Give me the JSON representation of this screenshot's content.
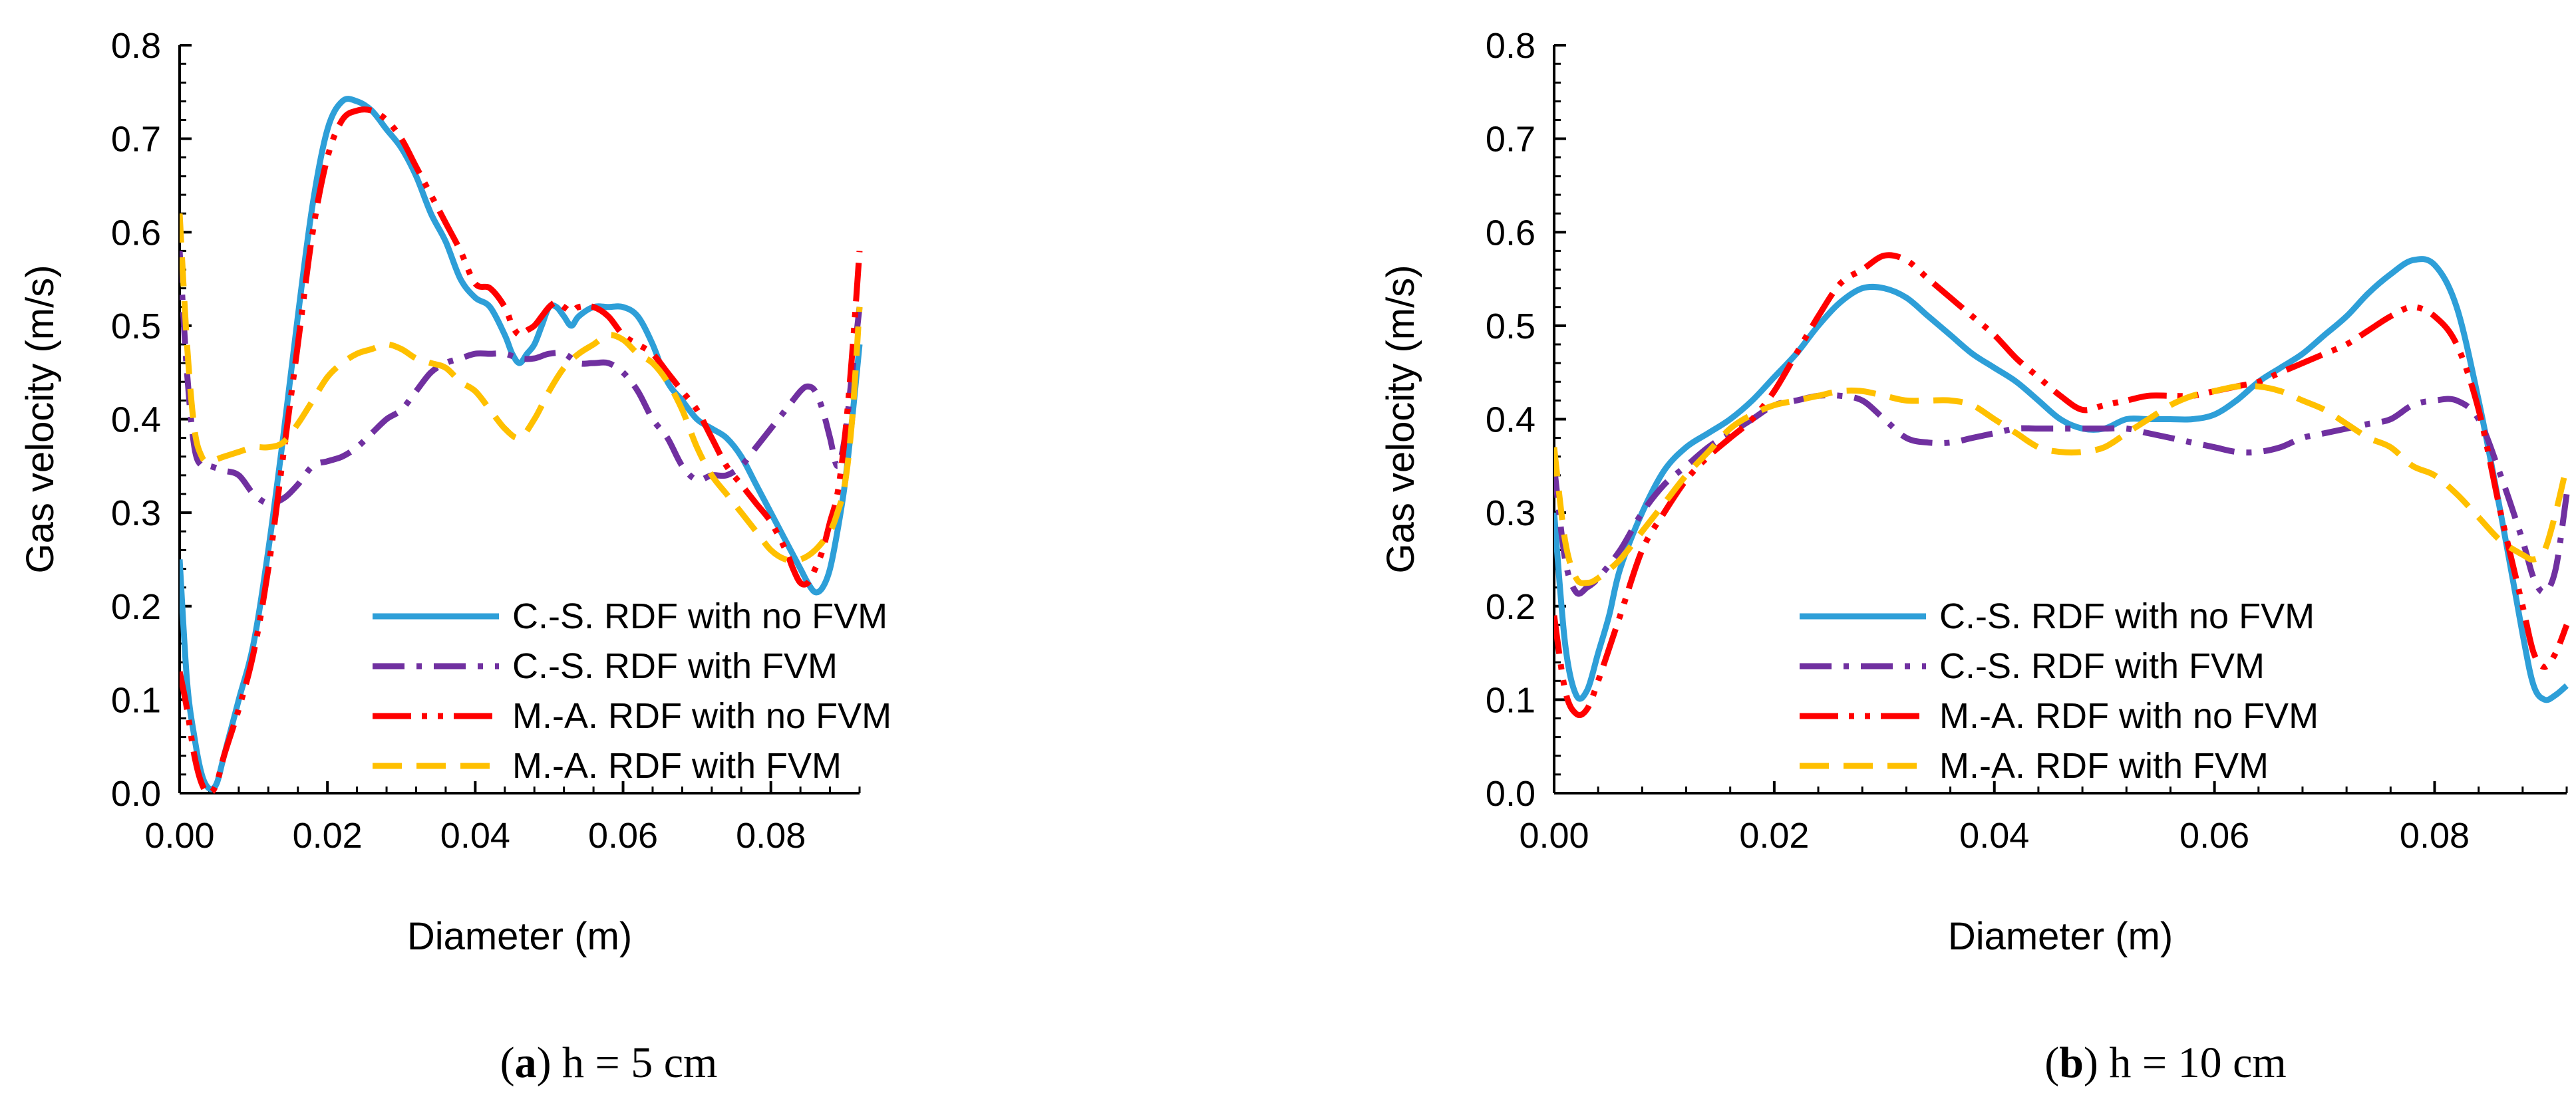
{
  "chart_data": [
    {
      "type": "line",
      "caption": {
        "open": "(",
        "letter": "a",
        "rest": ") h = 5 cm"
      },
      "xlabel": "Diameter (m)",
      "ylabel": "Gas velocity (m/s)",
      "xlim": [
        0,
        0.092
      ],
      "ylim": [
        0,
        0.8
      ],
      "xticks": [
        0,
        0.02,
        0.04,
        0.06,
        0.08
      ],
      "xtick_labels": [
        "0.00",
        "0.02",
        "0.04",
        "0.06",
        "0.08"
      ],
      "yticks": [
        0,
        0.1,
        0.2,
        0.3,
        0.4,
        0.5,
        0.6,
        0.7,
        0.8
      ],
      "ytick_labels": [
        "0.0",
        "0.1",
        "0.2",
        "0.3",
        "0.4",
        "0.5",
        "0.6",
        "0.7",
        "0.8"
      ],
      "grid": false,
      "legend_position": "bottom-right",
      "series": [
        {
          "name": "C.-S. RDF with no FVM",
          "color": "#2E9FD8",
          "dash": "solid",
          "x": [
            0.0,
            0.001,
            0.002,
            0.003,
            0.004,
            0.005,
            0.006,
            0.008,
            0.01,
            0.012,
            0.014,
            0.016,
            0.018,
            0.02,
            0.022,
            0.024,
            0.026,
            0.028,
            0.03,
            0.032,
            0.034,
            0.036,
            0.038,
            0.04,
            0.042,
            0.044,
            0.045,
            0.046,
            0.047,
            0.048,
            0.049,
            0.05,
            0.051,
            0.052,
            0.053,
            0.054,
            0.056,
            0.058,
            0.06,
            0.062,
            0.064,
            0.066,
            0.068,
            0.07,
            0.072,
            0.074,
            0.076,
            0.078,
            0.08,
            0.082,
            0.084,
            0.085,
            0.086,
            0.087,
            0.088,
            0.089,
            0.09,
            0.091,
            0.092
          ],
          "y": [
            0.25,
            0.12,
            0.06,
            0.02,
            0.005,
            0.01,
            0.04,
            0.1,
            0.16,
            0.26,
            0.38,
            0.51,
            0.63,
            0.71,
            0.74,
            0.74,
            0.73,
            0.71,
            0.69,
            0.66,
            0.62,
            0.59,
            0.55,
            0.53,
            0.52,
            0.49,
            0.47,
            0.46,
            0.47,
            0.48,
            0.5,
            0.52,
            0.52,
            0.51,
            0.5,
            0.51,
            0.52,
            0.52,
            0.52,
            0.51,
            0.48,
            0.44,
            0.42,
            0.4,
            0.39,
            0.38,
            0.36,
            0.33,
            0.3,
            0.27,
            0.24,
            0.225,
            0.215,
            0.22,
            0.24,
            0.28,
            0.33,
            0.4,
            0.48
          ]
        },
        {
          "name": "C.-S. RDF with FVM",
          "color": "#7030A0",
          "dash": "dashdot",
          "x": [
            0.0,
            0.001,
            0.002,
            0.003,
            0.004,
            0.006,
            0.008,
            0.01,
            0.012,
            0.014,
            0.016,
            0.018,
            0.02,
            0.022,
            0.024,
            0.026,
            0.028,
            0.03,
            0.032,
            0.034,
            0.036,
            0.038,
            0.04,
            0.042,
            0.044,
            0.046,
            0.048,
            0.05,
            0.052,
            0.054,
            0.056,
            0.058,
            0.06,
            0.062,
            0.064,
            0.066,
            0.068,
            0.07,
            0.072,
            0.074,
            0.076,
            0.078,
            0.08,
            0.082,
            0.084,
            0.085,
            0.086,
            0.087,
            0.088,
            0.089,
            0.09,
            0.091,
            0.092
          ],
          "y": [
            0.58,
            0.45,
            0.37,
            0.35,
            0.35,
            0.345,
            0.34,
            0.32,
            0.31,
            0.315,
            0.33,
            0.35,
            0.355,
            0.36,
            0.37,
            0.385,
            0.4,
            0.41,
            0.43,
            0.45,
            0.46,
            0.465,
            0.47,
            0.47,
            0.47,
            0.465,
            0.465,
            0.47,
            0.47,
            0.46,
            0.46,
            0.46,
            0.45,
            0.43,
            0.4,
            0.38,
            0.35,
            0.335,
            0.34,
            0.34,
            0.35,
            0.37,
            0.39,
            0.41,
            0.43,
            0.435,
            0.43,
            0.41,
            0.38,
            0.35,
            0.38,
            0.45,
            0.52
          ]
        },
        {
          "name": "M.-A. RDF with no FVM",
          "color": "#FF0000",
          "dash": "longdashdotdot",
          "x": [
            0.0,
            0.001,
            0.002,
            0.003,
            0.004,
            0.005,
            0.006,
            0.008,
            0.01,
            0.012,
            0.014,
            0.016,
            0.018,
            0.02,
            0.022,
            0.024,
            0.026,
            0.028,
            0.03,
            0.032,
            0.034,
            0.036,
            0.038,
            0.04,
            0.042,
            0.044,
            0.045,
            0.046,
            0.047,
            0.048,
            0.049,
            0.05,
            0.051,
            0.052,
            0.053,
            0.054,
            0.056,
            0.058,
            0.06,
            0.062,
            0.064,
            0.066,
            0.068,
            0.07,
            0.072,
            0.074,
            0.076,
            0.078,
            0.08,
            0.082,
            0.083,
            0.084,
            0.085,
            0.086,
            0.087,
            0.088,
            0.089,
            0.09,
            0.091,
            0.092
          ],
          "y": [
            0.13,
            0.09,
            0.04,
            0.01,
            0.0,
            0.01,
            0.04,
            0.09,
            0.15,
            0.24,
            0.36,
            0.48,
            0.6,
            0.68,
            0.72,
            0.73,
            0.73,
            0.72,
            0.7,
            0.67,
            0.64,
            0.61,
            0.58,
            0.545,
            0.54,
            0.52,
            0.5,
            0.49,
            0.495,
            0.5,
            0.51,
            0.52,
            0.525,
            0.52,
            0.515,
            0.52,
            0.52,
            0.51,
            0.49,
            0.48,
            0.47,
            0.45,
            0.43,
            0.41,
            0.38,
            0.35,
            0.33,
            0.31,
            0.29,
            0.26,
            0.24,
            0.225,
            0.225,
            0.24,
            0.26,
            0.29,
            0.32,
            0.38,
            0.47,
            0.58
          ]
        },
        {
          "name": "M.-A. RDF with FVM",
          "color": "#FFC000",
          "dash": "dash",
          "x": [
            0.0,
            0.001,
            0.002,
            0.003,
            0.004,
            0.006,
            0.008,
            0.01,
            0.012,
            0.014,
            0.016,
            0.018,
            0.02,
            0.022,
            0.024,
            0.026,
            0.028,
            0.03,
            0.032,
            0.034,
            0.036,
            0.038,
            0.04,
            0.042,
            0.044,
            0.046,
            0.048,
            0.05,
            0.052,
            0.054,
            0.056,
            0.058,
            0.06,
            0.062,
            0.064,
            0.066,
            0.068,
            0.07,
            0.072,
            0.074,
            0.076,
            0.078,
            0.08,
            0.082,
            0.084,
            0.086,
            0.088,
            0.089,
            0.09,
            0.091,
            0.092
          ],
          "y": [
            0.62,
            0.48,
            0.39,
            0.36,
            0.355,
            0.36,
            0.365,
            0.37,
            0.37,
            0.375,
            0.395,
            0.42,
            0.445,
            0.46,
            0.47,
            0.475,
            0.48,
            0.475,
            0.465,
            0.46,
            0.455,
            0.44,
            0.43,
            0.41,
            0.39,
            0.38,
            0.4,
            0.43,
            0.455,
            0.47,
            0.48,
            0.49,
            0.485,
            0.47,
            0.46,
            0.44,
            0.41,
            0.37,
            0.34,
            0.32,
            0.3,
            0.28,
            0.26,
            0.25,
            0.25,
            0.26,
            0.28,
            0.3,
            0.33,
            0.4,
            0.52
          ]
        }
      ]
    },
    {
      "type": "line",
      "caption": {
        "open": "(",
        "letter": "b",
        "rest": ") h = 10 cm"
      },
      "xlabel": "Diameter (m)",
      "ylabel": "Gas velocity (m/s)",
      "xlim": [
        0,
        0.092
      ],
      "ylim": [
        0,
        0.8
      ],
      "xticks": [
        0,
        0.02,
        0.04,
        0.06,
        0.08
      ],
      "xtick_labels": [
        "0.00",
        "0.02",
        "0.04",
        "0.06",
        "0.08"
      ],
      "yticks": [
        0,
        0.1,
        0.2,
        0.3,
        0.4,
        0.5,
        0.6,
        0.7,
        0.8
      ],
      "ytick_labels": [
        "0.0",
        "0.1",
        "0.2",
        "0.3",
        "0.4",
        "0.5",
        "0.6",
        "0.7",
        "0.8"
      ],
      "grid": false,
      "legend_position": "bottom-right",
      "series": [
        {
          "name": "C.-S. RDF with no FVM",
          "color": "#2E9FD8",
          "dash": "solid",
          "x": [
            0.0,
            0.001,
            0.002,
            0.003,
            0.004,
            0.005,
            0.006,
            0.008,
            0.01,
            0.012,
            0.014,
            0.016,
            0.018,
            0.02,
            0.022,
            0.024,
            0.026,
            0.028,
            0.03,
            0.032,
            0.034,
            0.036,
            0.038,
            0.04,
            0.042,
            0.044,
            0.046,
            0.048,
            0.05,
            0.052,
            0.054,
            0.056,
            0.058,
            0.06,
            0.062,
            0.064,
            0.066,
            0.068,
            0.07,
            0.072,
            0.074,
            0.076,
            0.078,
            0.08,
            0.082,
            0.084,
            0.086,
            0.088,
            0.089,
            0.09,
            0.091,
            0.092
          ],
          "y": [
            0.3,
            0.16,
            0.105,
            0.11,
            0.15,
            0.19,
            0.24,
            0.3,
            0.345,
            0.37,
            0.385,
            0.4,
            0.42,
            0.445,
            0.47,
            0.5,
            0.525,
            0.54,
            0.54,
            0.53,
            0.51,
            0.49,
            0.47,
            0.455,
            0.44,
            0.42,
            0.4,
            0.39,
            0.39,
            0.4,
            0.4,
            0.4,
            0.4,
            0.405,
            0.42,
            0.44,
            0.455,
            0.47,
            0.49,
            0.51,
            0.535,
            0.555,
            0.57,
            0.565,
            0.52,
            0.42,
            0.3,
            0.17,
            0.115,
            0.1,
            0.105,
            0.115
          ]
        },
        {
          "name": "C.-S. RDF with FVM",
          "color": "#7030A0",
          "dash": "dashdot",
          "x": [
            0.0,
            0.001,
            0.002,
            0.003,
            0.004,
            0.006,
            0.008,
            0.01,
            0.012,
            0.014,
            0.016,
            0.018,
            0.02,
            0.022,
            0.024,
            0.026,
            0.028,
            0.03,
            0.032,
            0.034,
            0.036,
            0.038,
            0.04,
            0.042,
            0.044,
            0.046,
            0.048,
            0.05,
            0.052,
            0.054,
            0.056,
            0.058,
            0.06,
            0.062,
            0.064,
            0.066,
            0.068,
            0.07,
            0.072,
            0.074,
            0.076,
            0.078,
            0.08,
            0.082,
            0.084,
            0.086,
            0.088,
            0.089,
            0.09,
            0.091,
            0.092
          ],
          "y": [
            0.35,
            0.25,
            0.215,
            0.22,
            0.23,
            0.26,
            0.3,
            0.33,
            0.35,
            0.37,
            0.385,
            0.4,
            0.415,
            0.42,
            0.425,
            0.425,
            0.42,
            0.4,
            0.38,
            0.375,
            0.375,
            0.38,
            0.385,
            0.39,
            0.39,
            0.39,
            0.39,
            0.39,
            0.39,
            0.385,
            0.38,
            0.375,
            0.37,
            0.365,
            0.365,
            0.37,
            0.38,
            0.385,
            0.39,
            0.395,
            0.4,
            0.415,
            0.42,
            0.42,
            0.4,
            0.34,
            0.27,
            0.23,
            0.215,
            0.24,
            0.32
          ]
        },
        {
          "name": "M.-A. RDF with no FVM",
          "color": "#FF0000",
          "dash": "longdashdotdot",
          "x": [
            0.0,
            0.001,
            0.002,
            0.003,
            0.004,
            0.006,
            0.008,
            0.01,
            0.012,
            0.014,
            0.016,
            0.018,
            0.02,
            0.022,
            0.024,
            0.026,
            0.028,
            0.03,
            0.032,
            0.034,
            0.036,
            0.038,
            0.04,
            0.042,
            0.044,
            0.046,
            0.048,
            0.05,
            0.052,
            0.054,
            0.056,
            0.058,
            0.06,
            0.062,
            0.064,
            0.066,
            0.068,
            0.07,
            0.072,
            0.074,
            0.076,
            0.078,
            0.08,
            0.082,
            0.084,
            0.086,
            0.088,
            0.089,
            0.09,
            0.091,
            0.092
          ],
          "y": [
            0.19,
            0.11,
            0.085,
            0.09,
            0.12,
            0.19,
            0.26,
            0.3,
            0.335,
            0.36,
            0.38,
            0.4,
            0.43,
            0.47,
            0.51,
            0.545,
            0.56,
            0.575,
            0.57,
            0.55,
            0.53,
            0.51,
            0.49,
            0.465,
            0.445,
            0.425,
            0.41,
            0.415,
            0.42,
            0.425,
            0.425,
            0.425,
            0.43,
            0.435,
            0.44,
            0.45,
            0.46,
            0.47,
            0.48,
            0.495,
            0.51,
            0.52,
            0.51,
            0.48,
            0.41,
            0.3,
            0.2,
            0.15,
            0.135,
            0.15,
            0.18
          ]
        },
        {
          "name": "M.-A. RDF with FVM",
          "color": "#FFC000",
          "dash": "dash",
          "x": [
            0.0,
            0.001,
            0.002,
            0.003,
            0.004,
            0.006,
            0.008,
            0.01,
            0.012,
            0.014,
            0.016,
            0.018,
            0.02,
            0.022,
            0.024,
            0.026,
            0.028,
            0.03,
            0.032,
            0.034,
            0.036,
            0.038,
            0.04,
            0.042,
            0.044,
            0.046,
            0.048,
            0.05,
            0.052,
            0.054,
            0.056,
            0.058,
            0.06,
            0.062,
            0.064,
            0.066,
            0.068,
            0.07,
            0.072,
            0.074,
            0.076,
            0.078,
            0.08,
            0.082,
            0.084,
            0.086,
            0.088,
            0.089,
            0.09,
            0.091,
            0.092
          ],
          "y": [
            0.37,
            0.27,
            0.23,
            0.225,
            0.23,
            0.25,
            0.28,
            0.31,
            0.34,
            0.365,
            0.39,
            0.405,
            0.415,
            0.42,
            0.425,
            0.43,
            0.43,
            0.425,
            0.42,
            0.42,
            0.42,
            0.415,
            0.4,
            0.385,
            0.37,
            0.365,
            0.365,
            0.37,
            0.385,
            0.4,
            0.415,
            0.425,
            0.43,
            0.435,
            0.435,
            0.43,
            0.42,
            0.41,
            0.395,
            0.38,
            0.37,
            0.35,
            0.34,
            0.32,
            0.295,
            0.27,
            0.255,
            0.25,
            0.26,
            0.3,
            0.35
          ]
        }
      ]
    }
  ]
}
